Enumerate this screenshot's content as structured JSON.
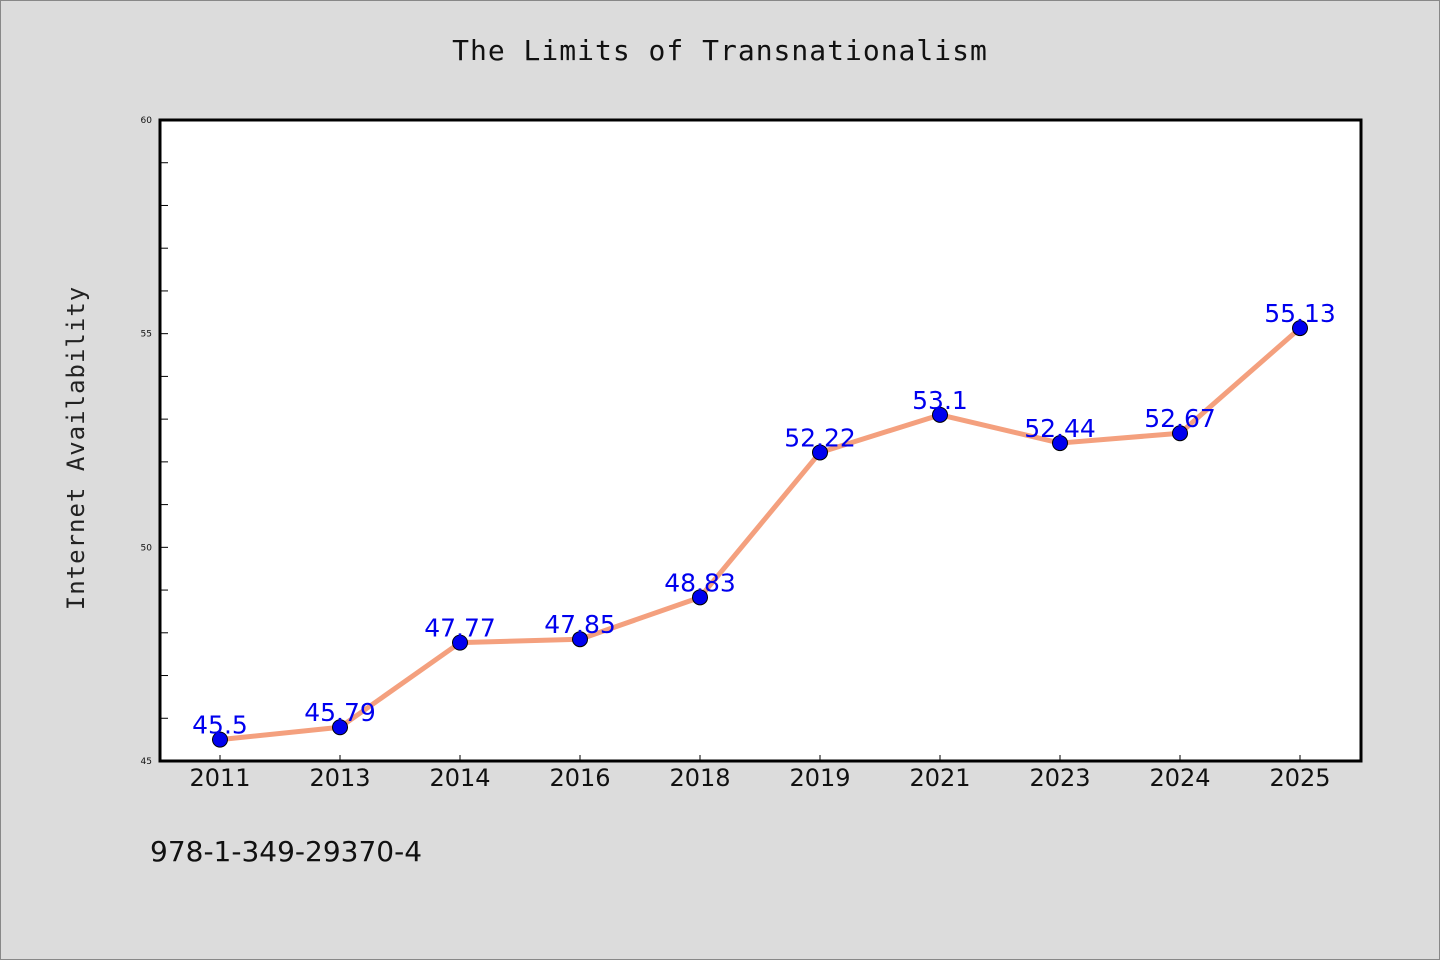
{
  "chart_data": {
    "type": "line",
    "title": "The Limits of Transnationalism",
    "xlabel": "",
    "ylabel": "Internet Availability",
    "categories": [
      "2011",
      "2013",
      "2014",
      "2016",
      "2018",
      "2019",
      "2021",
      "2023",
      "2024",
      "2025"
    ],
    "series": [
      {
        "values": [
          45.5,
          45.79,
          47.77,
          47.85,
          48.83,
          52.22,
          53.1,
          52.44,
          52.67,
          55.13
        ],
        "labels": [
          "45.5",
          "45.79",
          "47.77",
          "47.85",
          "48.83",
          "52.22",
          "53.1",
          "52.44",
          "52.67",
          "55.13"
        ],
        "line_color": "#f4a07e",
        "marker_color": "#0000ee"
      }
    ],
    "ylim": [
      45,
      60
    ],
    "yticks": [
      45,
      50,
      55,
      60
    ],
    "ytick_labels": [
      "45",
      "50",
      "55",
      "60"
    ],
    "grid": false,
    "legend": "none"
  },
  "footer": {
    "isbn": "978-1-349-29370-4"
  },
  "colors": {
    "background": "#dcdcdc",
    "plot_background": "#ffffff",
    "axis": "#000000"
  }
}
